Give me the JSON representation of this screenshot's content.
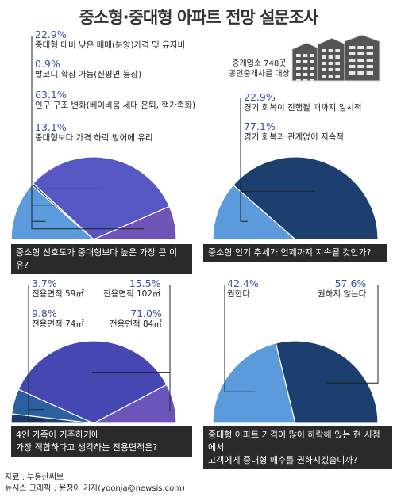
{
  "title": "중소형·중대형 아파트 전망 설문조사",
  "survey_target": [
    "중개업소 748곳",
    "공인중개사를 대상"
  ],
  "chart_data": [
    {
      "type": "pie",
      "question": "중소형 선호도가 중대형보다 높은 가장 큰 이유?",
      "slices": [
        {
          "label": "중대형 대비 낮은 매매(분양)가격 및 유지비",
          "value": 22.9,
          "pct_text": "22.9%",
          "color": "#5b9bdc"
        },
        {
          "label": "발코니 확장 가능(신평면 등장)",
          "value": 0.9,
          "pct_text": "0.9%",
          "color": "#2b4a86"
        },
        {
          "label": "인구 구조 변화(베이비붐 세대 은퇴, 핵가족화)",
          "value": 63.1,
          "pct_text": "63.1%",
          "color": "#5757c4"
        },
        {
          "label": "중대형보다 가격 하락 방어에 유리",
          "value": 13.1,
          "pct_text": "13.1%",
          "color": "#6f55b8"
        }
      ]
    },
    {
      "type": "pie",
      "question": "중소형 인기 추세가 언제까지 지속될 것인가?",
      "slices": [
        {
          "label": "경기 회복이 진행될 때까지 일시적",
          "value": 22.9,
          "pct_text": "22.9%",
          "color": "#5b9bdc"
        },
        {
          "label": "경기 회복과 관계없이 지속적",
          "value": 77.1,
          "pct_text": "77.1%",
          "color": "#1d3f70"
        }
      ]
    },
    {
      "type": "pie",
      "question_lines": [
        "4인 가족이 거주하기에",
        "가장 적합하다고 생각하는 전용면적은?"
      ],
      "slices": [
        {
          "label": "전용면적 59㎡",
          "value": 3.7,
          "pct_text": "3.7%",
          "color": "#1c3a6a"
        },
        {
          "label": "전용면적 74㎡",
          "value": 9.8,
          "pct_text": "9.8%",
          "color": "#2c5fa0"
        },
        {
          "label": "전용면적 84㎡",
          "value": 71.0,
          "pct_text": "71.0%",
          "color": "#4747b4"
        },
        {
          "label": "전용면적 102㎡",
          "value": 15.5,
          "pct_text": "15.5%",
          "color": "#6a55b8"
        }
      ]
    },
    {
      "type": "pie",
      "question_lines": [
        "중대형 아파트 가격이 많이 하락해 있는 현 시점에서",
        "고객에게 중대형 매수를 권하시겠습니까?"
      ],
      "slices": [
        {
          "label": "권한다",
          "value": 42.4,
          "pct_text": "42.4%",
          "color": "#5b9bdc"
        },
        {
          "label": "권하지 않는다",
          "value": 57.6,
          "pct_text": "57.6%",
          "color": "#1d3f70"
        }
      ]
    }
  ],
  "footer": {
    "source": "자료 : 부동산써브",
    "credit": "뉴시스 그래픽 : 윤정아 기자(yoonja@newsis.com)"
  }
}
